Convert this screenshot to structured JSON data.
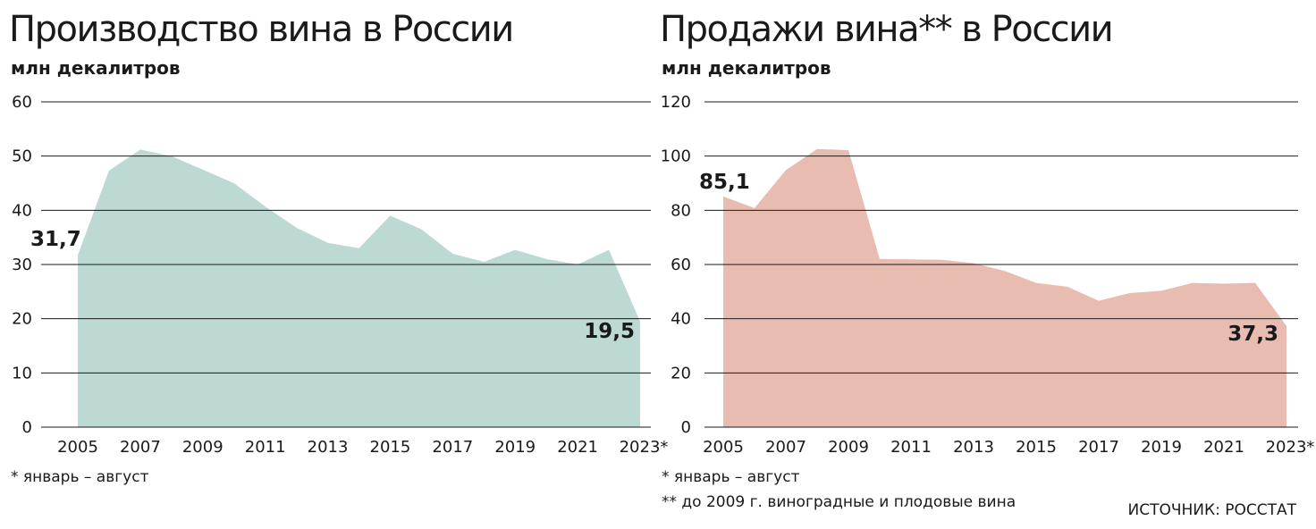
{
  "chart_data": [
    {
      "type": "area",
      "title": "Производство вина в России",
      "subtitle": "млн декалитров",
      "x": [
        "2005",
        "2006",
        "2007",
        "2008",
        "2009",
        "2010",
        "2011",
        "2012",
        "2013",
        "2014",
        "2015",
        "2016",
        "2017",
        "2018",
        "2019",
        "2020",
        "2021",
        "2022",
        "2023*"
      ],
      "x_tick_labels": [
        "2005",
        "2007",
        "2009",
        "2011",
        "2013",
        "2015",
        "2017",
        "2019",
        "2021",
        "2023*"
      ],
      "values": [
        31.7,
        47.3,
        51.2,
        50.0,
        47.5,
        45.0,
        40.7,
        36.8,
        34.0,
        33.0,
        39.0,
        36.5,
        32.0,
        30.5,
        32.7,
        31.0,
        30.0,
        32.7,
        19.5
      ],
      "ylim": [
        0,
        60
      ],
      "y_ticks": [
        "0",
        "10",
        "20",
        "30",
        "40",
        "50",
        "60"
      ],
      "color": "#bdd9d4",
      "grid": true,
      "data_labels": [
        {
          "text": "31,7",
          "index": 0
        },
        {
          "text": "19,5",
          "index": 18
        }
      ],
      "notes": [
        "* январь – август"
      ]
    },
    {
      "type": "area",
      "title": "Продажи вина** в России",
      "subtitle": "млн декалитров",
      "x": [
        "2005",
        "2006",
        "2007",
        "2008",
        "2009",
        "2010",
        "2011",
        "2012",
        "2013",
        "2014",
        "2015",
        "2016",
        "2017",
        "2018",
        "2019",
        "2020",
        "2021",
        "2022",
        "2023*"
      ],
      "x_tick_labels": [
        "2005",
        "2007",
        "2009",
        "2011",
        "2013",
        "2015",
        "2017",
        "2019",
        "2021",
        "2023*"
      ],
      "values": [
        85.1,
        80.8,
        94.8,
        102.6,
        102.2,
        62.0,
        61.9,
        61.7,
        60.5,
        57.6,
        53.2,
        51.8,
        46.6,
        49.5,
        50.3,
        53.2,
        52.9,
        53.2,
        37.3
      ],
      "ylim": [
        0,
        120
      ],
      "y_ticks": [
        "0",
        "20",
        "40",
        "60",
        "80",
        "100",
        "120"
      ],
      "color": "#e9bcb2",
      "grid": true,
      "data_labels": [
        {
          "text": "85,1",
          "index": 0
        },
        {
          "text": "37,3",
          "index": 18
        }
      ],
      "notes": [
        "* январь – август",
        "** до 2009 г. виноградные и плодовые вина"
      ]
    }
  ],
  "source": "ИСТОЧНИК: РОССТАТ"
}
